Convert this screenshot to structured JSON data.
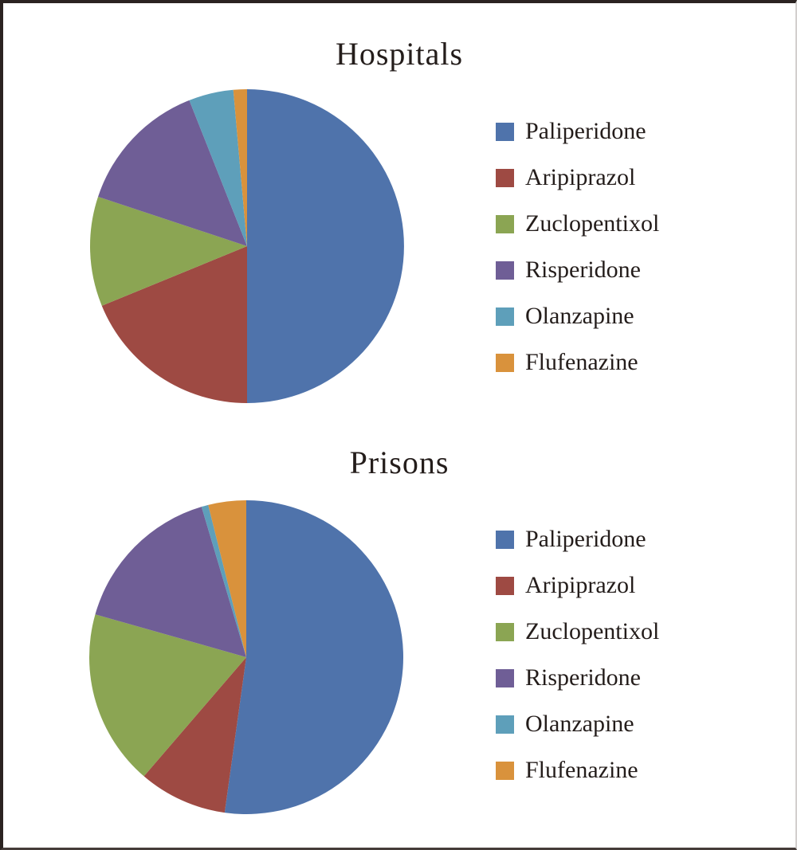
{
  "figure": {
    "background": "#ffffff",
    "frame_color": "#2b2321",
    "text_color": "#241d1b"
  },
  "chart_data": [
    {
      "type": "pie",
      "title": "Hospitals",
      "labels": [
        "Paliperidone",
        "Aripiprazol",
        "Zuclopentixol",
        "Risperidone",
        "Olanzapine",
        "Flufenazine"
      ],
      "values_percent": [
        50.0,
        18.8,
        11.3,
        13.9,
        4.6,
        1.4
      ],
      "colors": [
        "#4F73AB",
        "#9E4A43",
        "#8BA553",
        "#6F5E96",
        "#5E9FBA",
        "#D9923C"
      ],
      "start_angle_deg": 0,
      "direction": "clockwise",
      "legend_position": "right",
      "data_labels": false
    },
    {
      "type": "pie",
      "title": "Prisons",
      "labels": [
        "Paliperidone",
        "Aripiprazol",
        "Zuclopentixol",
        "Risperidone",
        "Olanzapine",
        "Flufenazine"
      ],
      "values_percent": [
        52.2,
        9.1,
        18.1,
        16.0,
        0.7,
        3.9
      ],
      "colors": [
        "#4F73AB",
        "#9E4A43",
        "#8BA553",
        "#6F5E96",
        "#5E9FBA",
        "#D9923C"
      ],
      "start_angle_deg": 0,
      "direction": "clockwise",
      "legend_position": "right",
      "data_labels": false
    }
  ]
}
